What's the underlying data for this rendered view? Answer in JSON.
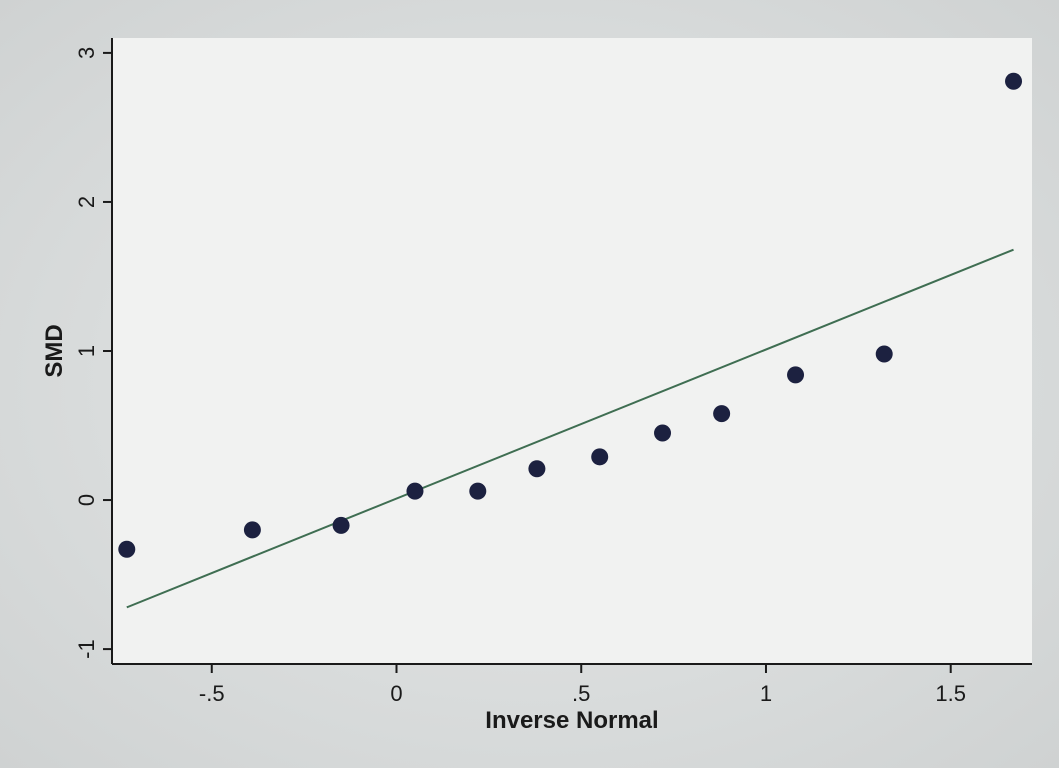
{
  "chart_data": {
    "type": "scatter",
    "title": "",
    "xlabel": "Inverse Normal",
    "ylabel": "SMD",
    "xlim": [
      -0.77,
      1.72
    ],
    "ylim": [
      -1.1,
      3.1
    ],
    "x_ticks": [
      {
        "value": -0.5,
        "label": "-.5"
      },
      {
        "value": 0,
        "label": "0"
      },
      {
        "value": 0.5,
        "label": ".5"
      },
      {
        "value": 1,
        "label": "1"
      },
      {
        "value": 1.5,
        "label": "1.5"
      }
    ],
    "y_ticks": [
      {
        "value": -1,
        "label": "-1"
      },
      {
        "value": 0,
        "label": "0"
      },
      {
        "value": 1,
        "label": "1"
      },
      {
        "value": 2,
        "label": "2"
      },
      {
        "value": 3,
        "label": "3"
      }
    ],
    "grid": false,
    "series": [
      {
        "type": "scatter",
        "color": "#1c2140",
        "points": [
          {
            "x": -0.73,
            "y": -0.33
          },
          {
            "x": -0.39,
            "y": -0.2
          },
          {
            "x": -0.15,
            "y": -0.17
          },
          {
            "x": 0.05,
            "y": 0.06
          },
          {
            "x": 0.22,
            "y": 0.06
          },
          {
            "x": 0.38,
            "y": 0.21
          },
          {
            "x": 0.55,
            "y": 0.29
          },
          {
            "x": 0.72,
            "y": 0.45
          },
          {
            "x": 0.88,
            "y": 0.58
          },
          {
            "x": 1.08,
            "y": 0.84
          },
          {
            "x": 1.32,
            "y": 0.98
          },
          {
            "x": 1.67,
            "y": 2.81
          }
        ]
      },
      {
        "type": "line",
        "color": "#3f6e52",
        "points": [
          {
            "x": -0.73,
            "y": -0.72
          },
          {
            "x": 1.67,
            "y": 1.68
          }
        ]
      }
    ]
  }
}
